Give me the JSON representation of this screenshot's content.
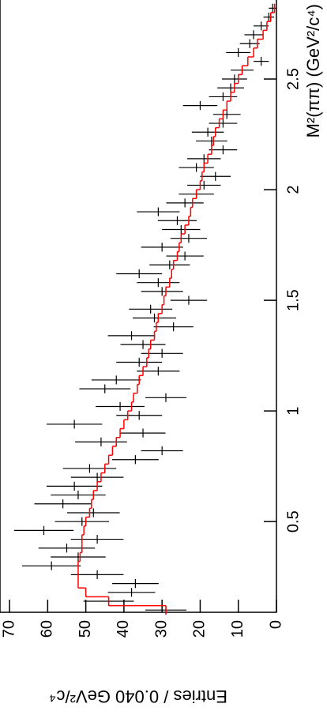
{
  "chart_data": {
    "type": "errorbar",
    "xlabel": "M²(ππ) (GeV²/c⁴)",
    "ylabel": "Entries / 0.040 GeV²/c⁴",
    "x": [
      0.1,
      0.14,
      0.18,
      0.22,
      0.26,
      0.3,
      0.34,
      0.38,
      0.42,
      0.46,
      0.5,
      0.54,
      0.58,
      0.62,
      0.66,
      0.7,
      0.74,
      0.78,
      0.82,
      0.86,
      0.9,
      0.94,
      0.98,
      1.02,
      1.06,
      1.1,
      1.14,
      1.18,
      1.22,
      1.26,
      1.3,
      1.34,
      1.38,
      1.42,
      1.46,
      1.5,
      1.54,
      1.58,
      1.62,
      1.66,
      1.7,
      1.74,
      1.78,
      1.82,
      1.86,
      1.9,
      1.94,
      1.98,
      2.02,
      2.06,
      2.1,
      2.14,
      2.18,
      2.22,
      2.26,
      2.3,
      2.34,
      2.38,
      2.42,
      2.46,
      2.5,
      2.54,
      2.58,
      2.62,
      2.66,
      2.7,
      2.74,
      2.78,
      2.82
    ],
    "series": [
      {
        "color": "#000000",
        "style": "points",
        "values": [
          29,
          44,
          38,
          37,
          47,
          59,
          52,
          55,
          47,
          61,
          51,
          48,
          56,
          52,
          53,
          47,
          49,
          37,
          30,
          46,
          35,
          53,
          36,
          41,
          29,
          45,
          42,
          31,
          36,
          30,
          35,
          38,
          27,
          32,
          33,
          23,
          30,
          31,
          36,
          28,
          24,
          30,
          23,
          25,
          26,
          31,
          24,
          21,
          19,
          16,
          21,
          19,
          14,
          17,
          18,
          14,
          13,
          20,
          14,
          12,
          11,
          9,
          4,
          10,
          7,
          6,
          4,
          2,
          1
        ],
        "errors": [
          5.4,
          6.6,
          6.2,
          6.1,
          6.9,
          7.7,
          7.2,
          7.4,
          6.9,
          7.8,
          7.1,
          6.9,
          7.5,
          7.2,
          7.3,
          6.9,
          7,
          6.1,
          5.5,
          6.8,
          5.9,
          7.3,
          6,
          6.4,
          5.4,
          6.7,
          6.5,
          5.6,
          6,
          5.5,
          5.9,
          6.2,
          5.2,
          5.7,
          5.7,
          4.8,
          5.5,
          5.6,
          6,
          5.3,
          4.9,
          5.5,
          4.8,
          5,
          5.1,
          5.6,
          4.9,
          4.6,
          4.4,
          4,
          4.6,
          4.4,
          3.7,
          4.1,
          4.2,
          3.7,
          3.6,
          4.5,
          3.7,
          3.5,
          3.3,
          3,
          2,
          3.2,
          2.6,
          2.4,
          2,
          1.4,
          1
        ]
      },
      {
        "color": "#ff0000",
        "style": "step",
        "values": [
          29,
          44,
          50,
          52,
          52,
          52,
          51.5,
          51,
          51,
          50.5,
          50,
          49,
          48.5,
          48,
          47,
          46,
          45,
          44,
          43,
          42,
          41,
          40,
          39,
          38,
          37.5,
          36.5,
          36,
          35,
          34,
          33.5,
          33,
          32,
          31.5,
          31,
          30,
          29.5,
          29,
          28,
          27.5,
          27,
          26,
          25.5,
          25,
          24,
          23,
          22.5,
          22,
          21,
          20,
          19.5,
          19,
          18,
          17,
          16.5,
          16,
          15,
          14,
          13,
          12,
          11,
          10,
          9,
          7.5,
          6,
          5,
          3.5,
          2.5,
          1.5,
          0.5
        ]
      }
    ],
    "xlim": [
      0.09,
      2.85
    ],
    "xticks": [
      0.5,
      1,
      1.5,
      2,
      2.5
    ],
    "ylim": [
      0,
      72.5
    ],
    "yticks": [
      0,
      10,
      20,
      30,
      40,
      50,
      60,
      70
    ]
  }
}
